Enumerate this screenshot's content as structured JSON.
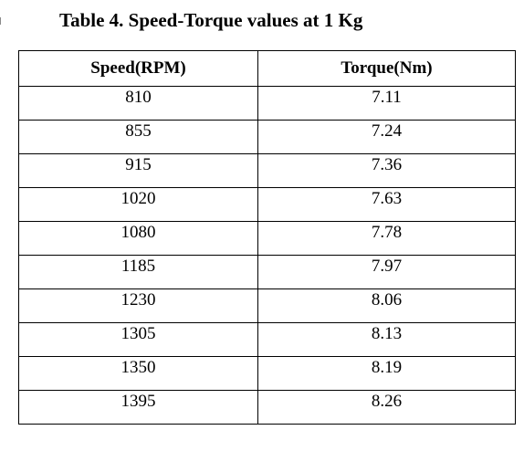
{
  "document": {
    "caption": "Table 4. Speed-Torque values at 1 Kg"
  },
  "table": {
    "headers": [
      "Speed(RPM)",
      "Torque(Nm)"
    ],
    "rows": [
      [
        "810",
        "7.11"
      ],
      [
        "855",
        "7.24"
      ],
      [
        "915",
        "7.36"
      ],
      [
        "1020",
        "7.63"
      ],
      [
        "1080",
        "7.78"
      ],
      [
        "1185",
        "7.97"
      ],
      [
        "1230",
        "8.06"
      ],
      [
        "1305",
        "8.13"
      ],
      [
        "1350",
        "8.19"
      ],
      [
        "1395",
        "8.26"
      ]
    ]
  }
}
